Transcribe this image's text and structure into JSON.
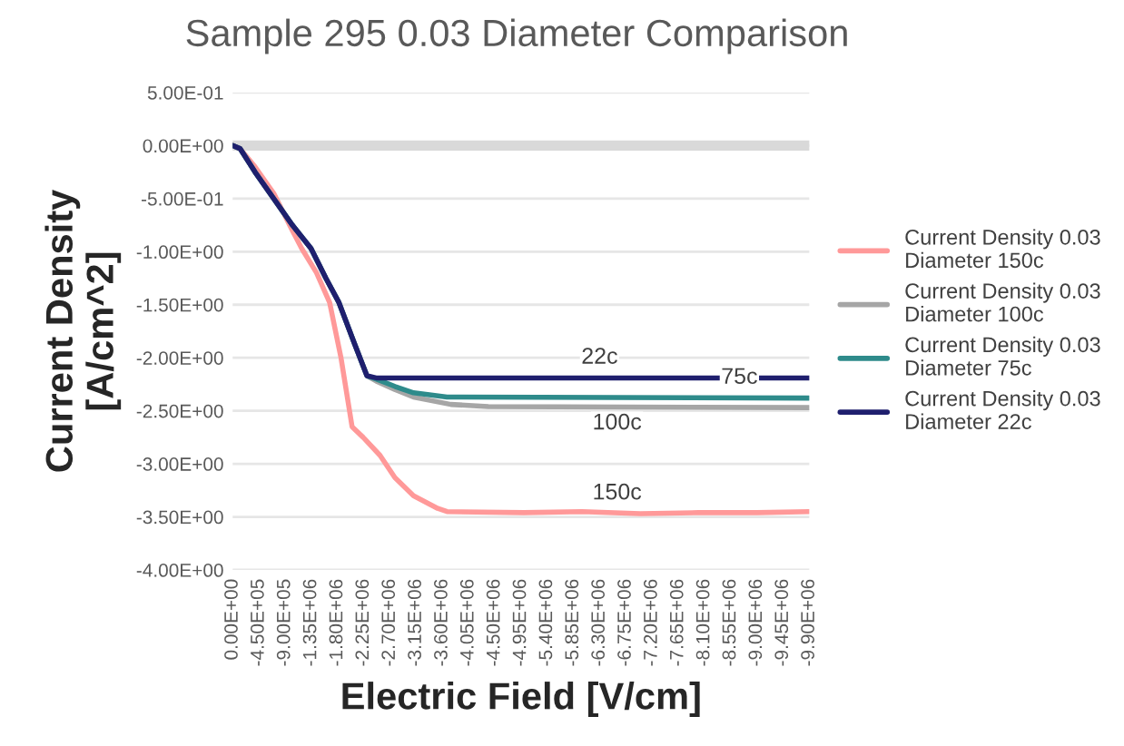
{
  "chart_data": {
    "type": "line",
    "title": "Sample 295 0.03 Diameter Comparison",
    "xlabel": "Electric Field [V/cm]",
    "ylabel": "Current Density\n[A/cm^2]",
    "xlim": [
      0,
      -9900000
    ],
    "ylim": [
      -4.0,
      0.5
    ],
    "xticks": [
      {
        "value": 0,
        "label": "0.00E+00"
      },
      {
        "value": -450000,
        "label": "-4.50E+05"
      },
      {
        "value": -900000,
        "label": "-9.00E+05"
      },
      {
        "value": -1350000,
        "label": "-1.35E+06"
      },
      {
        "value": -1800000,
        "label": "-1.80E+06"
      },
      {
        "value": -2250000,
        "label": "-2.25E+06"
      },
      {
        "value": -2700000,
        "label": "-2.70E+06"
      },
      {
        "value": -3150000,
        "label": "-3.15E+06"
      },
      {
        "value": -3600000,
        "label": "-3.60E+06"
      },
      {
        "value": -4050000,
        "label": "-4.05E+06"
      },
      {
        "value": -4500000,
        "label": "-4.50E+06"
      },
      {
        "value": -4950000,
        "label": "-4.95E+06"
      },
      {
        "value": -5400000,
        "label": "-5.40E+06"
      },
      {
        "value": -5850000,
        "label": "-5.85E+06"
      },
      {
        "value": -6300000,
        "label": "-6.30E+06"
      },
      {
        "value": -6750000,
        "label": "-6.75E+06"
      },
      {
        "value": -7200000,
        "label": "-7.20E+06"
      },
      {
        "value": -7650000,
        "label": "-7.65E+06"
      },
      {
        "value": -8100000,
        "label": "-8.10E+06"
      },
      {
        "value": -8550000,
        "label": "-8.55E+06"
      },
      {
        "value": -9000000,
        "label": "-9.00E+06"
      },
      {
        "value": -9450000,
        "label": "-9.45E+06"
      },
      {
        "value": -9900000,
        "label": "-9.90E+06"
      }
    ],
    "yticks": [
      {
        "value": 0.5,
        "label": "5.00E-01"
      },
      {
        "value": 0,
        "label": "0.00E+00"
      },
      {
        "value": -0.5,
        "label": "-5.00E-01"
      },
      {
        "value": -1.0,
        "label": "-1.00E+00"
      },
      {
        "value": -1.5,
        "label": "-1.50E+00"
      },
      {
        "value": -2.0,
        "label": "-2.00E+00"
      },
      {
        "value": -2.5,
        "label": "-2.50E+00"
      },
      {
        "value": -3.0,
        "label": "-3.00E+00"
      },
      {
        "value": -3.5,
        "label": "-3.50E+00"
      },
      {
        "value": -4.0,
        "label": "-4.00E+00"
      }
    ],
    "grid": "y",
    "legend": "right",
    "marker": "none",
    "line_style": "solid",
    "ref_lines": [
      {
        "axis": "y",
        "value": 0,
        "color": "#d9d9d9"
      }
    ],
    "annotations": [
      {
        "text": "22c",
        "x": -6300000,
        "y": -2.0
      },
      {
        "text": "75c",
        "x": -8700000,
        "y": -2.19
      },
      {
        "text": "100c",
        "x": -6600000,
        "y": -2.62
      },
      {
        "text": "150c",
        "x": -6600000,
        "y": -3.28
      }
    ],
    "series": [
      {
        "name": "Current Density 0.03 Diameter 150c",
        "color": "#ff9999",
        "x": [
          0,
          -130000,
          -384000,
          -705000,
          -1025000,
          -1185000,
          -1440000,
          -1665000,
          -1860000,
          -2050000,
          -2240000,
          -2530000,
          -2785000,
          -3105000,
          -3520000,
          -3680000,
          -5000000,
          -6000000,
          -7000000,
          -8000000,
          -9000000,
          -9900000
        ],
        "values": [
          0,
          -0.03,
          -0.2,
          -0.45,
          -0.8,
          -0.97,
          -1.2,
          -1.48,
          -2.0,
          -2.65,
          -2.75,
          -2.92,
          -3.13,
          -3.3,
          -3.42,
          -3.45,
          -3.46,
          -3.45,
          -3.47,
          -3.46,
          -3.46,
          -3.45
        ]
      },
      {
        "name": "Current Density 0.03 Diameter 100c",
        "color": "#a6a6a6",
        "x": [
          0,
          -130000,
          -384000,
          -705000,
          -1025000,
          -1345000,
          -1600000,
          -1825000,
          -2080000,
          -2305000,
          -2465000,
          -2785000,
          -3105000,
          -3745000,
          -4390000,
          -9900000
        ],
        "values": [
          0,
          -0.03,
          -0.25,
          -0.5,
          -0.75,
          -0.97,
          -1.25,
          -1.48,
          -1.85,
          -2.17,
          -2.22,
          -2.3,
          -2.37,
          -2.44,
          -2.46,
          -2.47
        ]
      },
      {
        "name": "Current Density 0.03 Diameter 75c",
        "color": "#2e8b8b",
        "x": [
          0,
          -130000,
          -384000,
          -705000,
          -1025000,
          -1345000,
          -1600000,
          -1825000,
          -2080000,
          -2305000,
          -2465000,
          -2785000,
          -3105000,
          -3680000,
          -9900000
        ],
        "values": [
          0,
          -0.03,
          -0.25,
          -0.5,
          -0.75,
          -0.97,
          -1.25,
          -1.48,
          -1.85,
          -2.17,
          -2.2,
          -2.27,
          -2.33,
          -2.37,
          -2.38
        ]
      },
      {
        "name": "Current Density 0.03 Diameter 22c",
        "color": "#1f1f6e",
        "x": [
          0,
          -130000,
          -384000,
          -705000,
          -1025000,
          -1345000,
          -1600000,
          -1825000,
          -2080000,
          -2305000,
          -2465000,
          -9900000
        ],
        "values": [
          0,
          -0.03,
          -0.25,
          -0.5,
          -0.75,
          -0.97,
          -1.25,
          -1.48,
          -1.85,
          -2.17,
          -2.19,
          -2.19
        ]
      }
    ]
  }
}
